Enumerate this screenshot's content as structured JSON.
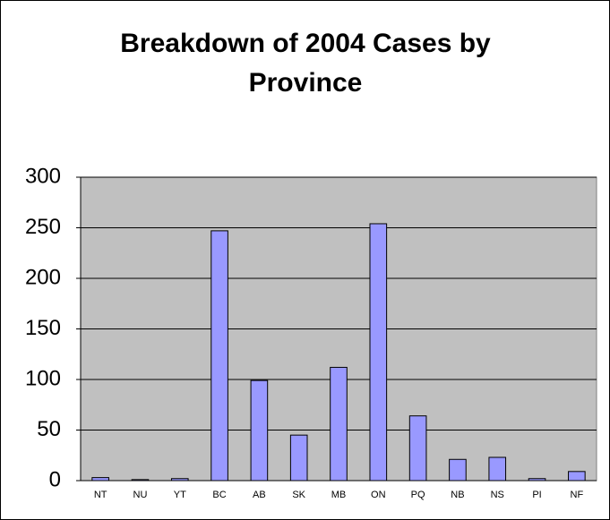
{
  "chart_data": {
    "type": "bar",
    "title": "Breakdown of 2004 Cases by Province",
    "categories": [
      "NT",
      "NU",
      "YT",
      "BC",
      "AB",
      "SK",
      "MB",
      "ON",
      "PQ",
      "NB",
      "NS",
      "PI",
      "NF"
    ],
    "values": [
      3,
      1,
      2,
      247,
      99,
      45,
      112,
      254,
      64,
      21,
      23,
      2,
      9
    ],
    "color": "#9999ff",
    "ylim": [
      0,
      300
    ],
    "yticks": [
      0,
      50,
      100,
      150,
      200,
      250,
      300
    ],
    "grid": true
  }
}
